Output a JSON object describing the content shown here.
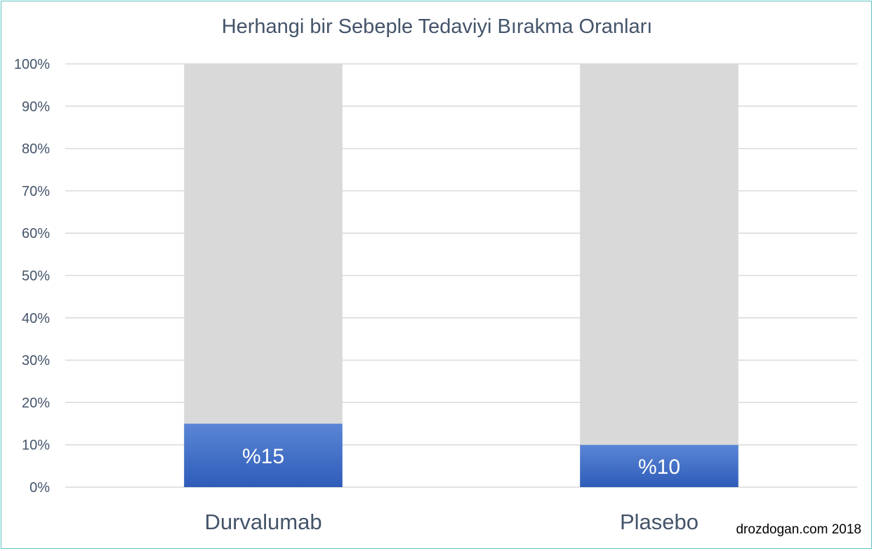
{
  "chart_data": {
    "type": "bar",
    "stacked": true,
    "percent_stacked": true,
    "title": "Herhangi bir Sebeple Tedaviyi Bırakma Oranları",
    "categories": [
      "Durvalumab",
      "Plasebo"
    ],
    "series": [
      {
        "values": [
          15,
          10
        ],
        "data_labels": [
          "%15",
          "%10"
        ],
        "color": "#4472c4"
      },
      {
        "values": [
          85,
          90
        ],
        "color": "#d9d9d9"
      }
    ],
    "ylim": [
      0,
      100
    ],
    "yticks": [
      "0%",
      "10%",
      "20%",
      "30%",
      "40%",
      "50%",
      "60%",
      "70%",
      "80%",
      "90%",
      "100%"
    ],
    "grid": true,
    "legend": "none"
  },
  "watermark": "drozdogan.com 2018",
  "colors": {
    "accent": "#4472c4",
    "remainder": "#d9d9d9",
    "text": "#44546a",
    "border": "#5fc2c2"
  }
}
